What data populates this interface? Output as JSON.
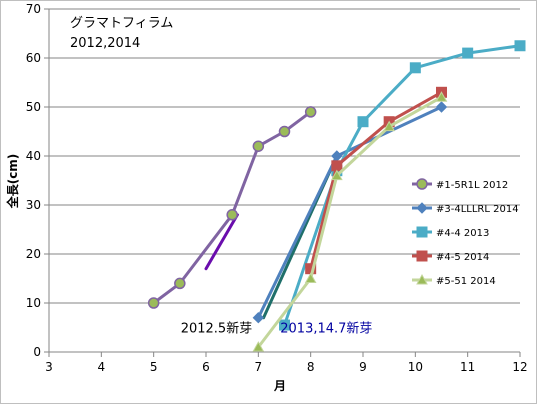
{
  "chart_data": {
    "type": "line",
    "title": "グラマトフィラム",
    "subtitle": "2012,2014",
    "xlabel": "月",
    "ylabel": "全長(cm)",
    "xlim": [
      3,
      12
    ],
    "ylim": [
      0,
      70
    ],
    "x_ticks": [
      "3",
      "4",
      "5",
      "6",
      "7",
      "8",
      "9",
      "10",
      "11",
      "12"
    ],
    "y_ticks": [
      "0",
      "10",
      "20",
      "30",
      "40",
      "50",
      "60",
      "70"
    ],
    "grid": "horizontal",
    "legend_position": "right",
    "series": [
      {
        "name": "#1-5R1L 2012",
        "color": "#8064A2",
        "marker": "circle",
        "marker_fill": "#9BBB59",
        "points": [
          [
            5,
            10
          ],
          [
            5.5,
            14
          ],
          [
            6.5,
            28
          ],
          [
            7,
            42
          ],
          [
            7.5,
            45
          ],
          [
            8,
            49
          ]
        ]
      },
      {
        "name": "#3-4LLLRL 2014",
        "color": "#4F81BD",
        "marker": "diamond",
        "marker_fill": "#4F81BD",
        "points": [
          [
            7,
            7
          ],
          [
            8.5,
            40
          ],
          [
            10.5,
            50
          ]
        ]
      },
      {
        "name": "#4-4 2013",
        "color": "#4BACC6",
        "marker": "square",
        "marker_fill": "#4BACC6",
        "points": [
          [
            7.5,
            5.5
          ],
          [
            8.5,
            37
          ],
          [
            9,
            47
          ],
          [
            10,
            58
          ],
          [
            11,
            61
          ],
          [
            12,
            62.5
          ]
        ]
      },
      {
        "name": "#4-5 2014",
        "color": "#C0504D",
        "marker": "square",
        "marker_fill": "#C0504D",
        "points": [
          [
            8,
            17
          ],
          [
            8.5,
            38
          ],
          [
            9.5,
            47
          ],
          [
            10.5,
            53
          ]
        ]
      },
      {
        "name": "#5-51 2014",
        "color": "#C3D69B",
        "marker": "triangle",
        "marker_fill": "#9BBB59",
        "points": [
          [
            7,
            1
          ],
          [
            8,
            15
          ],
          [
            8.5,
            36
          ],
          [
            9.5,
            46
          ],
          [
            10.5,
            52
          ]
        ]
      }
    ],
    "connector_lines": [
      {
        "color": "#6A0DAD",
        "points": [
          [
            6,
            17
          ],
          [
            6.6,
            28
          ]
        ]
      },
      {
        "color": "#1F6F6A",
        "points": [
          [
            7.1,
            7
          ],
          [
            8.5,
            40
          ]
        ]
      }
    ],
    "annotations": [
      {
        "text": "2012.5新芽",
        "color": "#000000",
        "x": 6.2,
        "y": 4
      },
      {
        "text": "2013,14.7新芽",
        "color": "#0000A0",
        "x": 8.3,
        "y": 4
      }
    ]
  }
}
